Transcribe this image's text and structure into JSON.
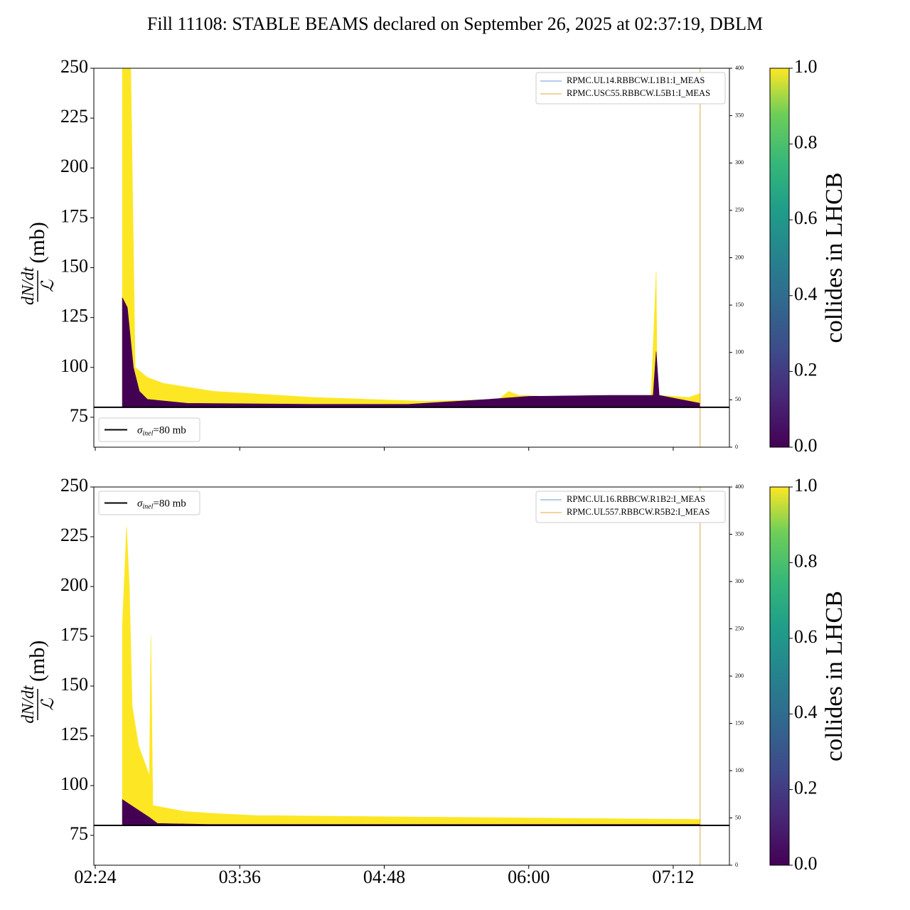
{
  "title": "Fill 11108: STABLE BEAMS declared on September 26, 2025 at 02:37:19, DBLM",
  "chart_data": [
    {
      "type": "area",
      "ylabel": {
        "numerator": "dN/dt",
        "denominator": "ℒ",
        "unit": "(mb)"
      },
      "xlim": [
        143.3,
        460
      ],
      "xticks": [
        144,
        216,
        288,
        360,
        432
      ],
      "ylim": [
        60,
        250
      ],
      "yticks": [
        75,
        100,
        125,
        150,
        175,
        200,
        225,
        250
      ],
      "y2lim": [
        0,
        400
      ],
      "y2ticks": [
        0,
        50,
        100,
        150,
        200,
        250,
        300,
        350,
        400
      ],
      "reference": {
        "value": 80,
        "label": {
          "symbol": "σ",
          "subscript": "inel",
          "text": "=80 mb"
        }
      },
      "reference_legend_loc": "lower left",
      "legend_loc": "upper right",
      "series": [
        {
          "kind": "area",
          "color": "#fde725",
          "x": [
            157.5,
            161.7,
            163.9,
            170,
            178,
            203,
            252.5,
            280,
            309,
            345,
            350,
            355,
            380,
            408.5,
            421,
            423.5,
            424,
            425,
            440,
            445.4
          ],
          "values": [
            250,
            250,
            100,
            95,
            92,
            88,
            85,
            84,
            83,
            84,
            88,
            86,
            85,
            84,
            86,
            148,
            90,
            86,
            85,
            87
          ]
        },
        {
          "kind": "area",
          "color": "#440154",
          "x": [
            157.5,
            160,
            163,
            166,
            170,
            190,
            252.5,
            300,
            340,
            360,
            400,
            410,
            422,
            423.5,
            425,
            445.4
          ],
          "values": [
            135,
            130,
            100,
            88,
            84,
            82,
            81.5,
            81.5,
            84,
            85.5,
            86,
            86,
            86,
            108,
            86,
            82
          ]
        },
        {
          "kind": "line",
          "axis": "y2",
          "name": "RPMC.UL14.RBBCW.L1B1:I_MEAS",
          "color": "#6a9bd1",
          "x": [
            157.5,
            445.4
          ],
          "values": [
            0,
            0
          ]
        },
        {
          "kind": "line",
          "axis": "y2",
          "name": "RPMC.USC55.RBBCW.L5B1:I_MEAS",
          "color": "#e0a845",
          "x": [
            157.5,
            445.4,
            445.4,
            445.6
          ],
          "values": [
            0,
            0,
            400,
            400
          ]
        }
      ],
      "colorbar": {
        "label": "collides in LHCB",
        "colormap": "viridis",
        "lim": [
          0,
          1
        ],
        "ticks": [
          {
            "value": 0,
            "label": "0.0"
          },
          {
            "value": 0.2,
            "label": "0.2"
          },
          {
            "value": 0.4,
            "label": "0.4"
          },
          {
            "value": 0.6,
            "label": "0.6"
          },
          {
            "value": 0.8,
            "label": "0.8"
          },
          {
            "value": 1,
            "label": "1.0"
          }
        ]
      }
    },
    {
      "type": "area",
      "ylabel": {
        "numerator": "dN/dt",
        "denominator": "ℒ",
        "unit": "(mb)"
      },
      "xlim": [
        143.3,
        460
      ],
      "xticks": [
        {
          "value": 144,
          "label": "02:24"
        },
        {
          "value": 216,
          "label": "03:36"
        },
        {
          "value": 288,
          "label": "04:48"
        },
        {
          "value": 360,
          "label": "06:00"
        },
        {
          "value": 432,
          "label": "07:12"
        }
      ],
      "ylim": [
        60,
        250
      ],
      "yticks": [
        75,
        100,
        125,
        150,
        175,
        200,
        225,
        250
      ],
      "y2lim": [
        0,
        400
      ],
      "y2ticks": [
        0,
        50,
        100,
        150,
        200,
        250,
        300,
        350,
        400
      ],
      "reference": {
        "value": 80,
        "label": {
          "symbol": "σ",
          "subscript": "inel",
          "text": "=80 mb"
        }
      },
      "reference_legend_loc": "upper left",
      "legend_loc": "upper right",
      "series": [
        {
          "kind": "area",
          "color": "#fde725",
          "x": [
            157.5,
            159.6,
            161,
            162.4,
            165.6,
            169.2,
            171,
            171.7,
            172.7,
            188.7,
            203,
            224,
            273.8,
            330,
            445.4
          ],
          "values": [
            180,
            230,
            200,
            140,
            120,
            110,
            105,
            175,
            90,
            87,
            86,
            85,
            84.5,
            84,
            83
          ]
        },
        {
          "kind": "area",
          "color": "#440154",
          "x": [
            157.5,
            165,
            171,
            175,
            200,
            445.4
          ],
          "values": [
            93,
            88,
            84,
            81,
            80.5,
            80.5
          ]
        },
        {
          "kind": "line",
          "axis": "y2",
          "name": "RPMC.UL16.RBBCW.R1B2:I_MEAS",
          "color": "#6a9bd1",
          "x": [
            157.5,
            445.4
          ],
          "values": [
            0,
            0
          ]
        },
        {
          "kind": "line",
          "axis": "y2",
          "name": "RPMC.UL557.RBBCW.R5B2:I_MEAS",
          "color": "#e0a845",
          "x": [
            157.5,
            445.4,
            445.4,
            445.6
          ],
          "values": [
            0,
            0,
            400,
            400
          ]
        }
      ],
      "colorbar": {
        "label": "collides in LHCB",
        "colormap": "viridis",
        "lim": [
          0,
          1
        ],
        "ticks": [
          {
            "value": 0,
            "label": "0.0"
          },
          {
            "value": 0.2,
            "label": "0.2"
          },
          {
            "value": 0.4,
            "label": "0.4"
          },
          {
            "value": 0.6,
            "label": "0.6"
          },
          {
            "value": 0.8,
            "label": "0.8"
          },
          {
            "value": 1,
            "label": "1.0"
          }
        ]
      }
    }
  ]
}
